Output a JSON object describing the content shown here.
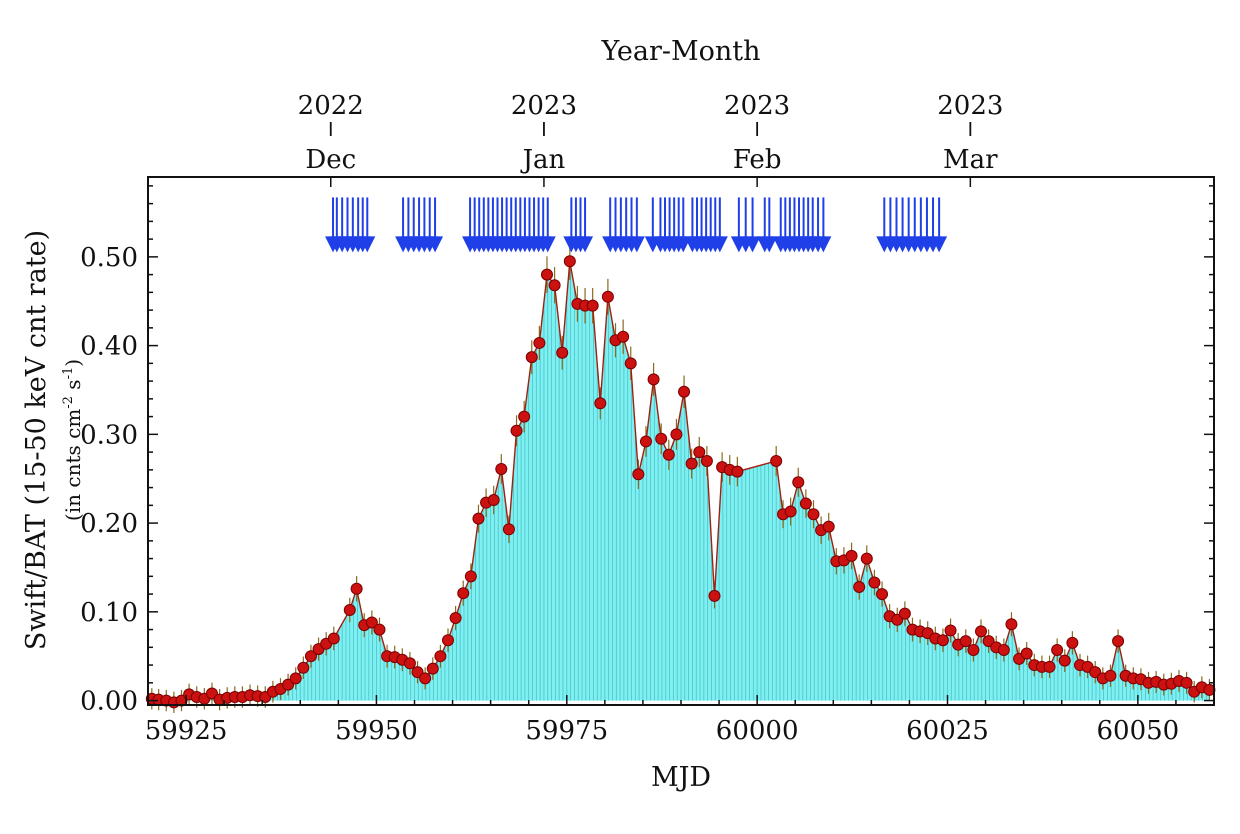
{
  "chart_data": {
    "type": "area",
    "title": "",
    "xlabel": "MJD",
    "ylabel": "Swift/BAT (15-50 keV cnt rate)",
    "ylabel_sub": "(in cnts cm",
    "ylabel_sup1": "-2",
    "ylabel_mid": " s",
    "ylabel_sup2": "-1",
    "ylabel_end": ")",
    "top_axis_title": "Year-Month",
    "xlim": [
      59920,
      60060
    ],
    "ylim": [
      -0.005,
      0.59
    ],
    "x_ticks": [
      59925,
      59950,
      59975,
      60000,
      60025,
      60050
    ],
    "x_tick_labels": [
      "59925",
      "59950",
      "59975",
      "60000",
      "60025",
      "60050"
    ],
    "y_ticks": [
      0.0,
      0.1,
      0.2,
      0.3,
      0.4,
      0.5
    ],
    "y_tick_labels": [
      "0.00",
      "0.10",
      "0.20",
      "0.30",
      "0.40",
      "0.50"
    ],
    "top_ticks": [
      {
        "mjd": 59944,
        "year": "2022",
        "month": "Dec"
      },
      {
        "mjd": 59972,
        "year": "2023",
        "month": "Jan"
      },
      {
        "mjd": 60000,
        "year": "2023",
        "month": "Feb"
      },
      {
        "mjd": 60028,
        "year": "2023",
        "month": "Mar"
      }
    ],
    "colors": {
      "fill": "#7df0f2",
      "bar_line": "#2a9aa5",
      "marker": "#cc1111",
      "marker_edge": "#7a0000",
      "curve": "#a02010",
      "arrow": "#1f3fe8"
    },
    "series": [
      {
        "name": "Swift/BAT 15-50 keV rate",
        "x": [
          59920.5,
          59921.4,
          59922.4,
          59923.4,
          59924.4,
          59925.4,
          59926.4,
          59927.4,
          59928.4,
          59929.4,
          59930.4,
          59931.4,
          59932.4,
          59933.4,
          59934.4,
          59935.4,
          59936.4,
          59937.4,
          59938.4,
          59939.4,
          59940.4,
          59941.4,
          59942.4,
          59943.4,
          59944.4,
          59946.5,
          59947.4,
          59948.4,
          59949.4,
          59950.4,
          59951.4,
          59952.4,
          59953.4,
          59954.4,
          59955.4,
          59956.4,
          59957.4,
          59958.4,
          59959.4,
          59960.4,
          59961.4,
          59962.4,
          59963.4,
          59964.4,
          59965.4,
          59966.4,
          59967.4,
          59968.4,
          59969.4,
          59970.4,
          59971.4,
          59972.4,
          59973.4,
          59974.4,
          59975.4,
          59976.4,
          59977.4,
          59978.4,
          59979.4,
          59980.4,
          59981.4,
          59982.4,
          59983.4,
          59984.4,
          59985.4,
          59986.4,
          59987.4,
          59988.4,
          59989.4,
          59990.4,
          59991.4,
          59992.4,
          59993.4,
          59994.4,
          59995.4,
          59996.4,
          59997.4,
          60002.5,
          60003.4,
          60004.4,
          60005.4,
          60006.4,
          60007.4,
          60008.4,
          60009.4,
          60010.4,
          60011.4,
          60012.4,
          60013.4,
          60014.4,
          60015.4,
          60016.4,
          60017.4,
          60018.4,
          60019.4,
          60020.4,
          60021.4,
          60022.4,
          60023.4,
          60024.4,
          60025.4,
          60026.4,
          60027.4,
          60028.4,
          60029.4,
          60030.4,
          60031.4,
          60032.4,
          60033.4,
          60034.4,
          60035.4,
          60036.4,
          60037.4,
          60038.4,
          60039.4,
          60040.4,
          60041.4,
          60042.4,
          60043.4,
          60044.4,
          60045.4,
          60046.4,
          60047.4,
          60048.4,
          60049.4,
          60050.4,
          60051.4,
          60052.4,
          60053.4,
          60054.4,
          60055.4,
          60056.4,
          60057.4,
          60058.4,
          60059.4
        ],
        "y": [
          0.002,
          0.001,
          0.0,
          -0.002,
          0.0,
          0.007,
          0.004,
          0.002,
          0.008,
          0.001,
          0.003,
          0.004,
          0.004,
          0.006,
          0.005,
          0.004,
          0.01,
          0.013,
          0.018,
          0.025,
          0.037,
          0.05,
          0.058,
          0.064,
          0.07,
          0.102,
          0.126,
          0.085,
          0.088,
          0.08,
          0.05,
          0.049,
          0.046,
          0.042,
          0.032,
          0.025,
          0.036,
          0.05,
          0.068,
          0.093,
          0.121,
          0.14,
          0.205,
          0.223,
          0.226,
          0.261,
          0.193,
          0.304,
          0.32,
          0.387,
          0.403,
          0.48,
          0.468,
          0.392,
          0.495,
          0.447,
          0.445,
          0.445,
          0.335,
          0.455,
          0.406,
          0.41,
          0.38,
          0.255,
          0.292,
          0.362,
          0.295,
          0.277,
          0.3,
          0.348,
          0.267,
          0.28,
          0.27,
          0.118,
          0.263,
          0.26,
          0.258,
          0.27,
          0.21,
          0.213,
          0.246,
          0.222,
          0.21,
          0.192,
          0.196,
          0.157,
          0.158,
          0.163,
          0.128,
          0.16,
          0.133,
          0.12,
          0.095,
          0.091,
          0.098,
          0.08,
          0.078,
          0.076,
          0.07,
          0.068,
          0.079,
          0.063,
          0.067,
          0.057,
          0.078,
          0.067,
          0.06,
          0.057,
          0.086,
          0.047,
          0.053,
          0.04,
          0.038,
          0.038,
          0.057,
          0.045,
          0.065,
          0.04,
          0.038,
          0.032,
          0.025,
          0.028,
          0.067,
          0.028,
          0.025,
          0.024,
          0.02,
          0.021,
          0.018,
          0.019,
          0.022,
          0.02,
          0.01,
          0.015,
          0.012
        ]
      }
    ],
    "observation_arrows": {
      "y_tip": 0.505,
      "x": [
        59944.3,
        59944.8,
        59945.5,
        59946.2,
        59946.9,
        59947.6,
        59948.2,
        59948.8,
        59953.5,
        59954.2,
        59954.9,
        59955.6,
        59956.3,
        59957.0,
        59957.7,
        59962.3,
        59962.9,
        59963.5,
        59964.1,
        59964.7,
        59965.3,
        59965.9,
        59966.5,
        59967.1,
        59967.7,
        59968.3,
        59968.9,
        59969.5,
        59970.1,
        59970.7,
        59971.3,
        59971.9,
        59972.5,
        59975.6,
        59976.2,
        59976.8,
        59977.4,
        59980.7,
        59981.4,
        59982.1,
        59982.8,
        59983.5,
        59984.2,
        59986.3,
        59987.3,
        59987.9,
        59988.5,
        59989.1,
        59989.7,
        59990.3,
        59991.5,
        59992.1,
        59992.7,
        59993.3,
        59993.9,
        59994.5,
        59995.1,
        59997.6,
        59998.5,
        59999.4,
        60001.0,
        60001.6,
        60003.1,
        60003.7,
        60004.3,
        60004.9,
        60005.5,
        60006.1,
        60006.7,
        60007.3,
        60008.0,
        60008.7,
        60016.7,
        60017.5,
        60018.3,
        60019.1,
        60019.9,
        60020.7,
        60021.5,
        60022.3,
        60023.1,
        60023.9
      ]
    }
  }
}
